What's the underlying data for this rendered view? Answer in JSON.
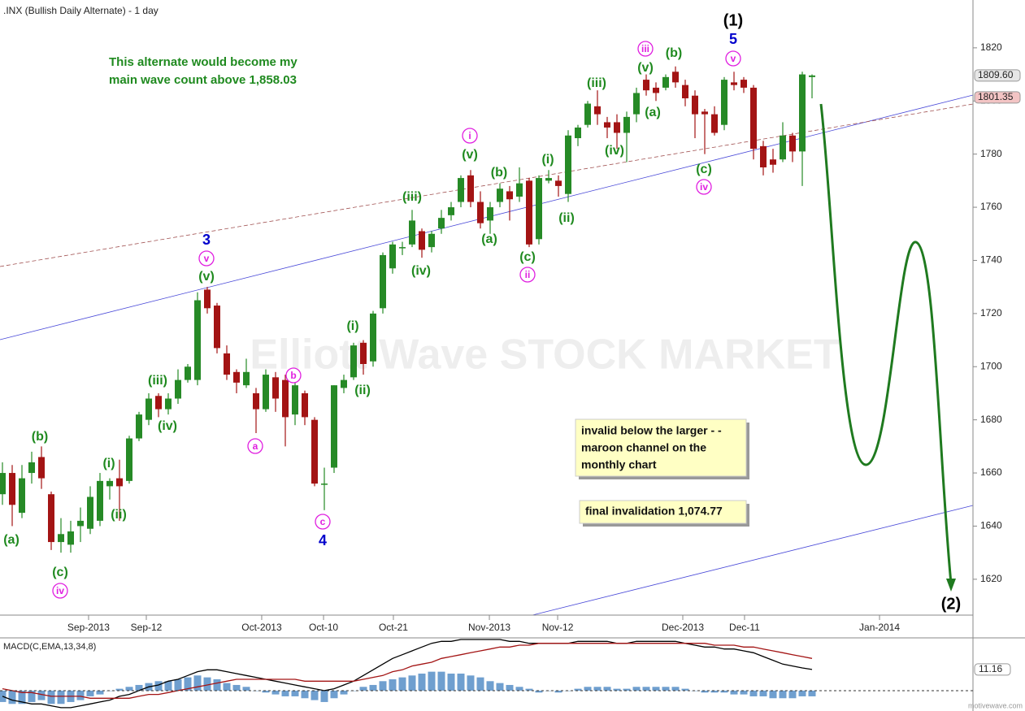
{
  "chart_data": [
    {
      "type": "candlestick",
      "title": ".INX (Bullish Daily Alternate) - 1 day",
      "ylim": [
        1606.5,
        1838
      ],
      "yticks": [
        1620,
        1640,
        1660,
        1680,
        1700,
        1720,
        1740,
        1760,
        1780,
        1800,
        1820
      ],
      "xlim": [
        -0.25,
        99.5
      ],
      "xticks": [
        {
          "value": 8.83,
          "label": "Sep-2013"
        },
        {
          "value": 14.75,
          "label": "Sep-12"
        },
        {
          "value": 26.58,
          "label": "Oct-2013"
        },
        {
          "value": 32.92,
          "label": "Oct-10"
        },
        {
          "value": 40.08,
          "label": "Oct-21"
        },
        {
          "value": 49.92,
          "label": "Nov-2013"
        },
        {
          "value": 56.92,
          "label": "Nov-12"
        },
        {
          "value": 69.75,
          "label": "Dec-2013"
        },
        {
          "value": 76.08,
          "label": "Dec-11"
        },
        {
          "value": 89.92,
          "label": "Jan-2014"
        }
      ],
      "up_color": "#268a26",
      "down_color": "#a31414",
      "open": [
        1652,
        1660,
        1645,
        1660,
        1666,
        1652,
        1634,
        1633,
        1640,
        1639,
        1642,
        1655,
        1658,
        1657,
        1673,
        1680,
        1689,
        1684,
        1688,
        1695,
        1695,
        1729,
        1723,
        1705,
        1698,
        1693,
        1690,
        1684,
        1696,
        1695,
        1682,
        1690,
        1680,
        1656,
        1662,
        1692,
        1696,
        1709,
        1702,
        1722,
        1737,
        1745,
        1746,
        1751,
        1745,
        1752,
        1757,
        1762,
        1772,
        1762,
        1755,
        1762,
        1766,
        1764,
        1770,
        1748,
        1770,
        1770,
        1765,
        1786,
        1791,
        1798,
        1792,
        1792,
        1788,
        1795,
        1808,
        1805,
        1805,
        1811,
        1806,
        1802,
        1796,
        1795,
        1791,
        1807,
        1808,
        1805,
        1783,
        1778,
        1778,
        1787,
        1781,
        1809
      ],
      "high": [
        1664,
        1663,
        1663,
        1668,
        1670,
        1653,
        1643,
        1642,
        1647,
        1655,
        1660,
        1658,
        1665,
        1674,
        1683,
        1690,
        1690,
        1690,
        1699,
        1701,
        1728,
        1730,
        1724,
        1708,
        1699,
        1703,
        1692,
        1699,
        1698,
        1697,
        1694,
        1691,
        1681,
        1662,
        1693,
        1697,
        1709,
        1710,
        1721,
        1743,
        1747,
        1747,
        1759,
        1752,
        1751,
        1759,
        1762,
        1772,
        1774,
        1766,
        1762,
        1769,
        1768,
        1775,
        1771,
        1772,
        1774,
        1772,
        1789,
        1791,
        1800,
        1804,
        1794,
        1795,
        1796,
        1805,
        1810,
        1807,
        1810,
        1813,
        1808,
        1804,
        1797,
        1798,
        1809,
        1811,
        1809,
        1806,
        1785,
        1782,
        1792,
        1788,
        1811,
        1810
      ],
      "low": [
        1648,
        1640,
        1643,
        1656,
        1654,
        1631,
        1630,
        1630,
        1634,
        1637,
        1640,
        1650,
        1642,
        1656,
        1672,
        1678,
        1681,
        1682,
        1686,
        1694,
        1693,
        1720,
        1705,
        1695,
        1690,
        1692,
        1675,
        1683,
        1683,
        1670,
        1678,
        1678,
        1655,
        1646,
        1660,
        1690,
        1695,
        1697,
        1700,
        1720,
        1735,
        1742,
        1745,
        1741,
        1743,
        1750,
        1755,
        1760,
        1760,
        1752,
        1750,
        1760,
        1755,
        1762,
        1745,
        1746,
        1769,
        1764,
        1762,
        1783,
        1790,
        1791,
        1786,
        1782,
        1777,
        1792,
        1802,
        1800,
        1804,
        1805,
        1798,
        1786,
        1780,
        1787,
        1789,
        1804,
        1803,
        1778,
        1772,
        1773,
        1777,
        1777,
        1768,
        1801
      ],
      "close": [
        1660,
        1648,
        1658,
        1664,
        1658,
        1634,
        1637,
        1638,
        1642,
        1651,
        1657,
        1657,
        1655,
        1673,
        1682,
        1688,
        1684,
        1688,
        1695,
        1700,
        1725,
        1722,
        1707,
        1697,
        1694,
        1698,
        1684,
        1697,
        1688,
        1681,
        1693,
        1681,
        1656,
        1656,
        1693,
        1695,
        1708,
        1701,
        1720,
        1742,
        1746,
        1745,
        1755,
        1744,
        1750,
        1756,
        1760,
        1771,
        1762,
        1754,
        1760,
        1767,
        1763,
        1769,
        1746,
        1771,
        1771,
        1768,
        1787,
        1790,
        1799,
        1795,
        1790,
        1788,
        1794,
        1803,
        1804,
        1803,
        1809,
        1807,
        1801,
        1795,
        1795,
        1788,
        1808,
        1806,
        1805,
        1782,
        1775,
        1776,
        1787,
        1781,
        1810,
        1809.6
      ],
      "price_tags": [
        {
          "value": 1809.6,
          "label": "1809.60",
          "color": "#e6e6e6"
        },
        {
          "value": 1801.35,
          "label": "1801.35",
          "color": "#f3c4c4"
        }
      ],
      "note": [
        "This alternate would become my",
        "main wave count above 1,858.03"
      ],
      "boxes": [
        [
          "invalid below the larger - -",
          "maroon channel on the",
          "monthly chart"
        ],
        [
          "final invalidation 1,074.77"
        ]
      ],
      "watermark": "Elliott Wave STOCK MARKET",
      "wave_labels": [
        {
          "text": "(1)",
          "style": "black"
        },
        {
          "text": "5",
          "style": "blue"
        },
        {
          "text": "v",
          "style": "circle"
        },
        {
          "text": "iii",
          "style": "circle"
        },
        {
          "text": "(v)",
          "style": "green"
        },
        {
          "text": "(b)",
          "style": "green"
        },
        {
          "text": "(a)",
          "style": "green"
        },
        {
          "text": "(iii)",
          "style": "green"
        },
        {
          "text": "(iv)",
          "style": "green"
        },
        {
          "text": "(c)",
          "style": "green"
        },
        {
          "text": "iv",
          "style": "circle"
        },
        {
          "text": "i",
          "style": "circle"
        },
        {
          "text": "(v)",
          "style": "green"
        },
        {
          "text": "(b)",
          "style": "green"
        },
        {
          "text": "(a)",
          "style": "green"
        },
        {
          "text": "(i)",
          "style": "green"
        },
        {
          "text": "(ii)",
          "style": "green"
        },
        {
          "text": "(c)",
          "style": "green"
        },
        {
          "text": "ii",
          "style": "circle"
        },
        {
          "text": "(iii)",
          "style": "green"
        },
        {
          "text": "(iv)",
          "style": "green"
        },
        {
          "text": "3",
          "style": "blue"
        },
        {
          "text": "v",
          "style": "circle"
        },
        {
          "text": "(v)",
          "style": "green"
        },
        {
          "text": "(i)",
          "style": "green"
        },
        {
          "text": "(ii)",
          "style": "green"
        },
        {
          "text": "b",
          "style": "circle"
        },
        {
          "text": "a",
          "style": "circle"
        },
        {
          "text": "c",
          "style": "circle"
        },
        {
          "text": "4",
          "style": "blue"
        },
        {
          "text": "(iii)",
          "style": "green"
        },
        {
          "text": "(iv)",
          "style": "green"
        },
        {
          "text": "(i)",
          "style": "green"
        },
        {
          "text": "(ii)",
          "style": "green"
        },
        {
          "text": "(b)",
          "style": "green"
        },
        {
          "text": "(a)",
          "style": "green"
        },
        {
          "text": "(c)",
          "style": "green"
        },
        {
          "text": "iv",
          "style": "circle"
        },
        {
          "text": "(2)",
          "style": "black"
        }
      ],
      "footer": "motivewave.com"
    },
    {
      "type": "macd",
      "title": "MACD(C,EMA,13,34,8)",
      "ylim": [
        -8.6,
        27
      ],
      "series": [
        {
          "name": "histogram",
          "color": "#6f9fcf",
          "values": [
            -6,
            -7,
            -7,
            -6,
            -5,
            -7,
            -7,
            -6,
            -5,
            -3,
            -2,
            0,
            1,
            2,
            3,
            4,
            5,
            5,
            6,
            7,
            8,
            7,
            6,
            4,
            3,
            2,
            0,
            -1,
            -2,
            -3,
            -3,
            -4,
            -5,
            -6,
            -4,
            -2,
            0,
            2,
            3,
            5,
            6,
            7,
            8,
            9,
            10,
            10,
            9,
            9,
            8,
            7,
            5,
            4,
            3,
            2,
            1,
            -1,
            0,
            -1,
            0,
            1,
            2,
            2,
            2,
            1,
            1,
            2,
            2,
            2,
            2,
            2,
            1,
            0,
            -1,
            -1,
            -1,
            -2,
            -2,
            -3,
            -3,
            -4,
            -4,
            -4,
            -3,
            -3
          ]
        },
        {
          "name": "macd",
          "color": "#000000",
          "values": [
            -3,
            -5,
            -6,
            -7,
            -7,
            -8,
            -9,
            -9,
            -8,
            -7,
            -6,
            -5,
            -3,
            -2,
            0,
            2,
            3,
            5,
            6,
            8,
            10,
            11,
            11,
            10,
            9,
            8,
            7,
            6,
            5,
            4,
            3,
            2,
            1,
            0,
            1,
            3,
            5,
            8,
            11,
            14,
            17,
            19,
            21,
            23,
            25,
            26,
            26,
            27,
            27,
            27,
            27,
            27,
            26,
            26,
            25,
            25,
            25,
            25,
            25,
            26,
            26,
            26,
            26,
            25,
            25,
            26,
            26,
            26,
            26,
            26,
            25,
            24,
            23,
            23,
            22,
            22,
            21,
            20,
            18,
            16,
            14,
            13,
            12,
            11.16
          ]
        },
        {
          "name": "signal",
          "color": "#a31414",
          "values": [
            1,
            0,
            -1,
            -1,
            -2,
            -3,
            -3,
            -3,
            -3,
            -4,
            -4,
            -4,
            -4,
            -4,
            -3,
            -2,
            -2,
            -1,
            0,
            1,
            2,
            3,
            4,
            5,
            6,
            6,
            6,
            6,
            6,
            6,
            6,
            5,
            5,
            5,
            5,
            5,
            5,
            6,
            7,
            8,
            10,
            11,
            13,
            14,
            15,
            17,
            18,
            19,
            20,
            21,
            22,
            23,
            23,
            24,
            24,
            25,
            25,
            25,
            25,
            25,
            25,
            25,
            25,
            25,
            25,
            25,
            25,
            25,
            25,
            25,
            25,
            25,
            25,
            24,
            24,
            24,
            23,
            23,
            22,
            21,
            20,
            19,
            18,
            17
          ]
        }
      ]
    }
  ]
}
